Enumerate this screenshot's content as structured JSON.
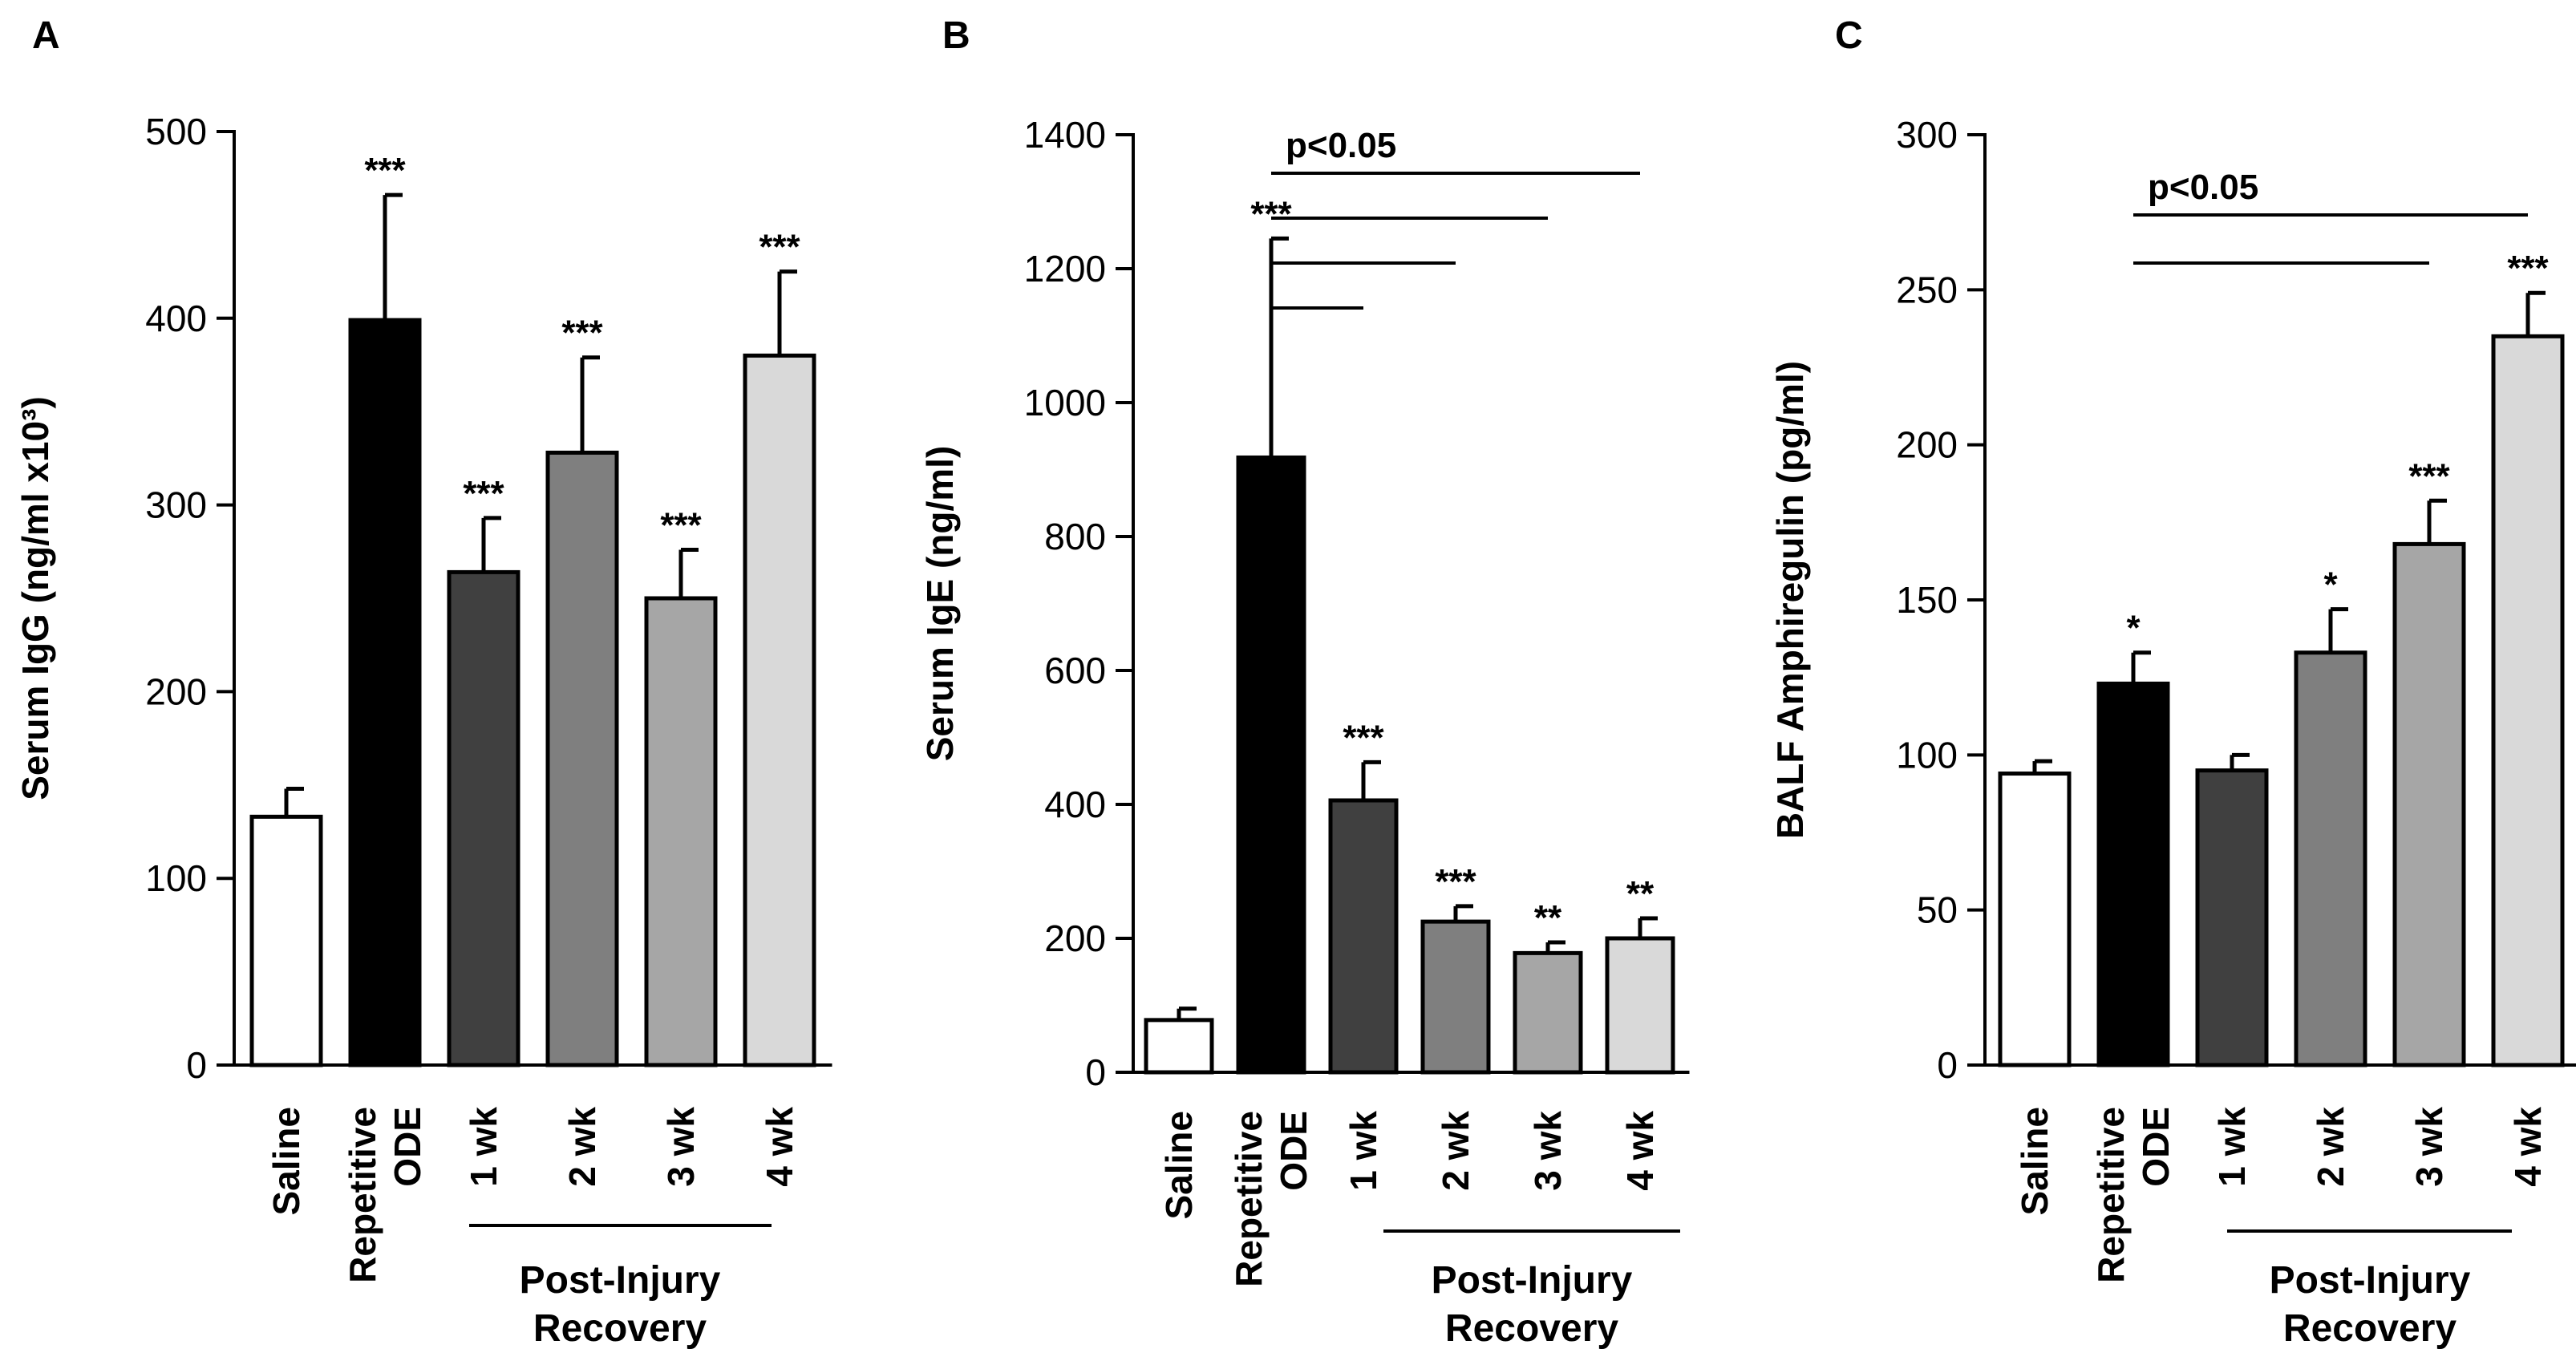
{
  "figure": {
    "group_label_line1": "Post-Injury",
    "group_label_line2": "Recovery",
    "categories": [
      {
        "lines": [
          "Saline"
        ]
      },
      {
        "lines": [
          "Repetitive",
          "ODE"
        ]
      },
      {
        "lines": [
          "1 wk"
        ]
      },
      {
        "lines": [
          "2 wk"
        ]
      },
      {
        "lines": [
          "3 wk"
        ]
      },
      {
        "lines": [
          "4 wk"
        ]
      }
    ],
    "bar_colors": [
      "#ffffff",
      "#000000",
      "#404040",
      "#7f7f7f",
      "#a6a6a6",
      "#d9d9d9"
    ]
  },
  "chart_data": [
    {
      "panel": "A",
      "type": "bar",
      "ylabel": "Serum IgG (ng/ml x10³)",
      "ylim": [
        0,
        500
      ],
      "yticks": [
        0,
        100,
        200,
        300,
        400,
        500
      ],
      "categories": [
        "Saline",
        "Repetitive ODE",
        "1 wk",
        "2 wk",
        "3 wk",
        "4 wk"
      ],
      "values": [
        133,
        399,
        264,
        328,
        250,
        380
      ],
      "errors": [
        15,
        67,
        29,
        51,
        26,
        45
      ],
      "significance": [
        "",
        "***",
        "***",
        "***",
        "***",
        "***"
      ],
      "comparisons": []
    },
    {
      "panel": "B",
      "type": "bar",
      "ylabel": "Serum IgE (ng/ml)",
      "ylim": [
        0,
        1400
      ],
      "yticks": [
        0,
        200,
        400,
        600,
        800,
        1000,
        1200,
        1400
      ],
      "categories": [
        "Saline",
        "Repetitive ODE",
        "1 wk",
        "2 wk",
        "3 wk",
        "4 wk"
      ],
      "values": [
        78,
        918,
        406,
        225,
        178,
        200
      ],
      "errors": [
        17,
        327,
        57,
        23,
        16,
        30
      ],
      "significance": [
        "",
        "***",
        "***",
        "***",
        "**",
        "**"
      ],
      "comparisons": [
        {
          "from": 1,
          "to": 2,
          "label": ""
        },
        {
          "from": 1,
          "to": 3,
          "label": ""
        },
        {
          "from": 1,
          "to": 4,
          "label": ""
        },
        {
          "from": 1,
          "to": 5,
          "label": "p<0.05"
        }
      ]
    },
    {
      "panel": "C",
      "type": "bar",
      "ylabel": "BALF Amphiregulin (pg/ml)",
      "ylim": [
        0,
        300
      ],
      "yticks": [
        0,
        50,
        100,
        150,
        200,
        250,
        300
      ],
      "categories": [
        "Saline",
        "Repetitive ODE",
        "1 wk",
        "2 wk",
        "3 wk",
        "4 wk"
      ],
      "values": [
        94,
        123,
        95,
        133,
        168,
        235
      ],
      "errors": [
        4,
        10,
        5,
        14,
        14,
        14
      ],
      "significance": [
        "",
        "*",
        "",
        "*",
        "***",
        "***"
      ],
      "comparisons": [
        {
          "from": 1,
          "to": 4,
          "label": ""
        },
        {
          "from": 1,
          "to": 5,
          "label": "p<0.05"
        }
      ]
    }
  ]
}
